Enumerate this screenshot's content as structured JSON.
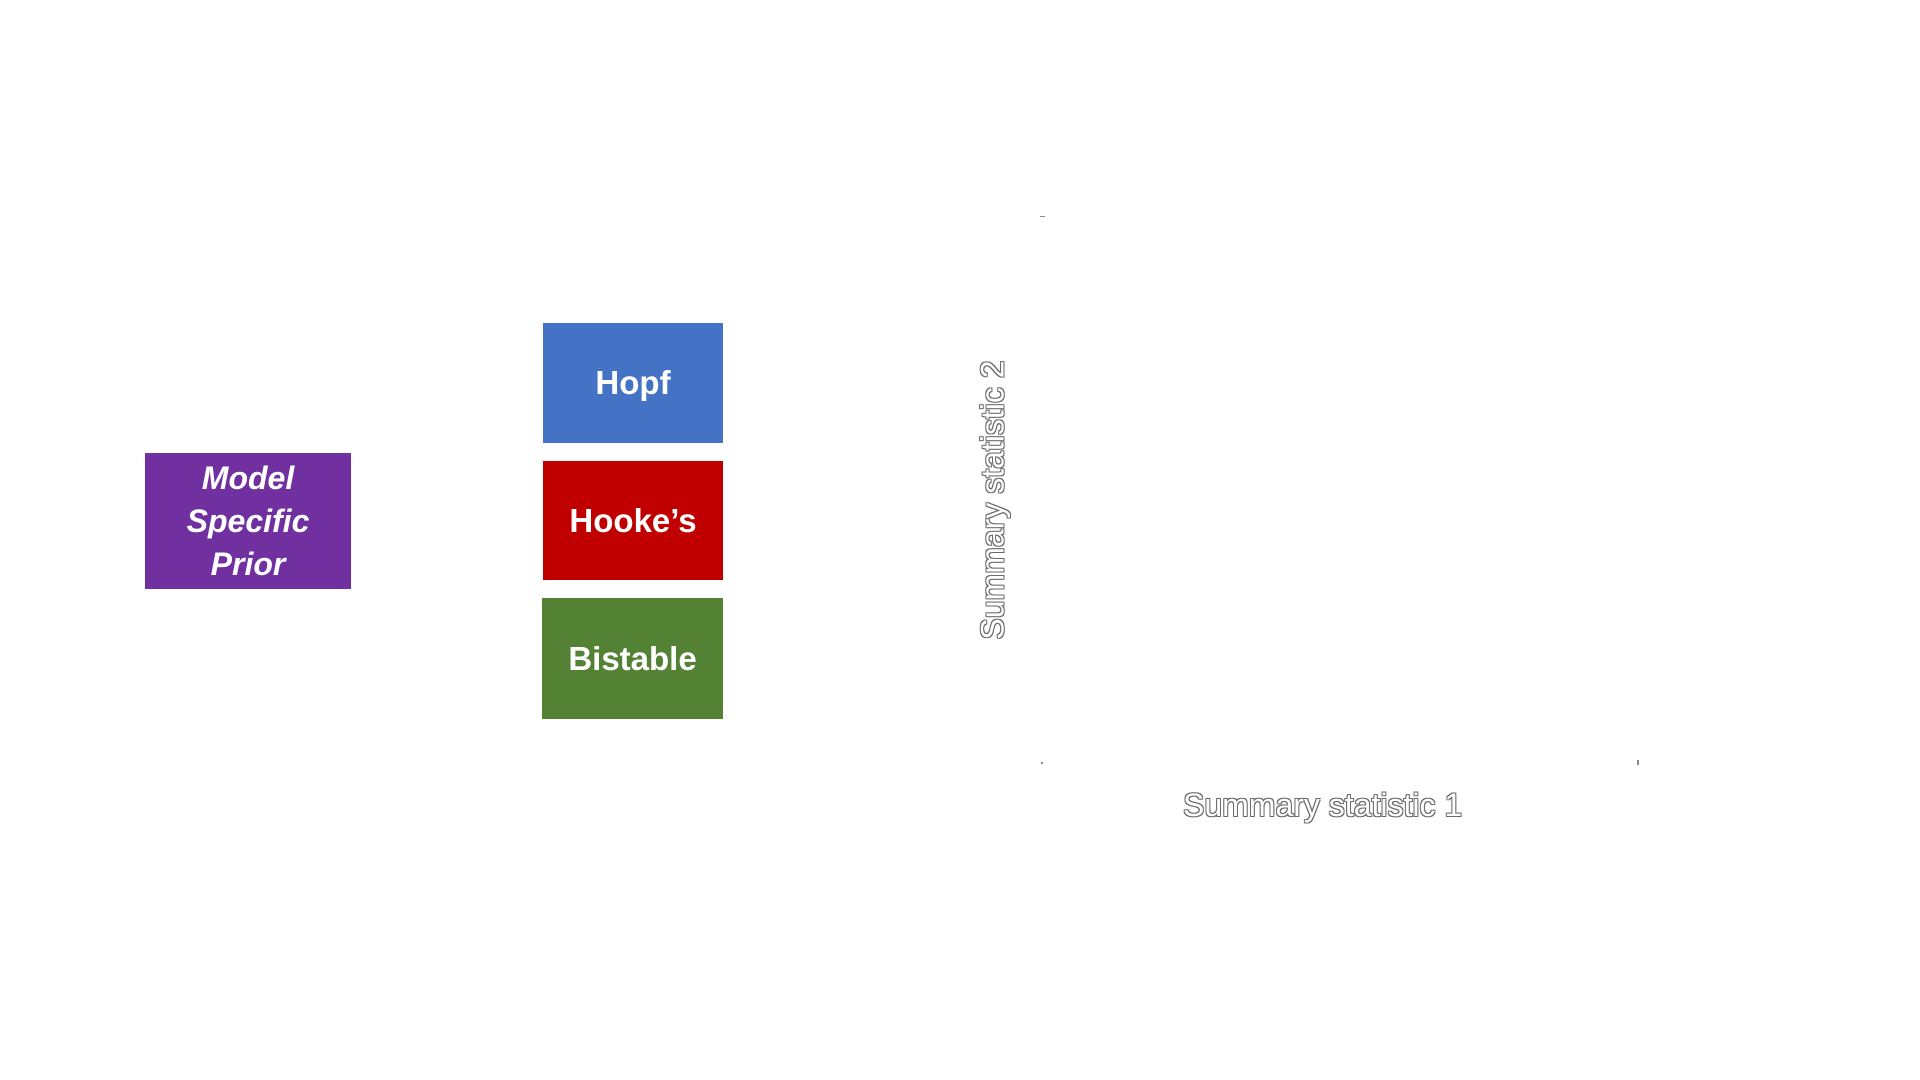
{
  "prior": {
    "lines": [
      "Model",
      "Specific",
      "Prior"
    ],
    "color": "#7030a0"
  },
  "models": [
    {
      "label": "Hopf",
      "color": "#4472c4"
    },
    {
      "label": "Hooke’s",
      "color": "#c00000"
    },
    {
      "label": "Bistable",
      "color": "#548235"
    }
  ],
  "plot": {
    "xlabel": "Summary statistic 1",
    "ylabel": "Summary statistic 2"
  }
}
